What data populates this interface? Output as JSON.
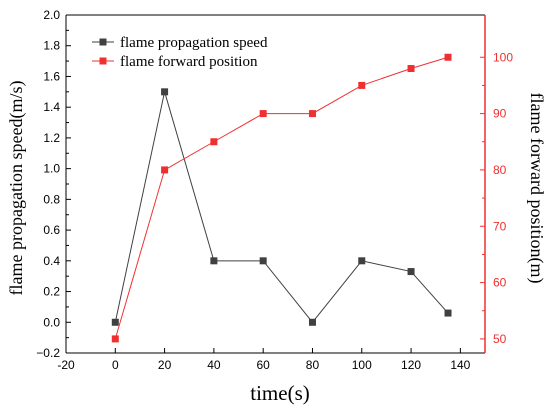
{
  "chart_data": {
    "type": "line",
    "xlabel": "time(s)",
    "ylabel_left": "flame propagation speed(m/s)",
    "ylabel_right": "flame forward position(m)",
    "xlim": [
      -20,
      150
    ],
    "xticks": [
      -20,
      0,
      20,
      40,
      60,
      80,
      100,
      120,
      140
    ],
    "ylim_left": [
      -0.2,
      2.0
    ],
    "yticks_left": [
      -0.2,
      0.0,
      0.2,
      0.4,
      0.6,
      0.8,
      1.0,
      1.2,
      1.4,
      1.6,
      1.8,
      2.0
    ],
    "ytick_labels_left": [
      "−0.2",
      "0.0",
      "0.2",
      "0.4",
      "0.6",
      "0.8",
      "1.0",
      "1.2",
      "1.4",
      "1.6",
      "1.8",
      "2.0"
    ],
    "ylim_right": [
      47.5,
      107.5
    ],
    "yticks_right": [
      50,
      60,
      70,
      80,
      90,
      100
    ],
    "legend_position": "top-left",
    "grid": false,
    "series": [
      {
        "name": "flame propagation speed",
        "axis": "left",
        "color": "#404040",
        "marker": "square",
        "x": [
          0,
          20,
          40,
          60,
          80,
          100,
          120,
          135
        ],
        "y": [
          0.0,
          1.5,
          0.4,
          0.4,
          0.0,
          0.4,
          0.33,
          0.06
        ]
      },
      {
        "name": "flame forward position",
        "axis": "right",
        "color": "#f03030",
        "marker": "square",
        "x": [
          0,
          20,
          40,
          60,
          80,
          100,
          120,
          135
        ],
        "y": [
          50,
          80,
          85,
          90,
          90,
          95,
          98,
          100
        ]
      }
    ]
  }
}
